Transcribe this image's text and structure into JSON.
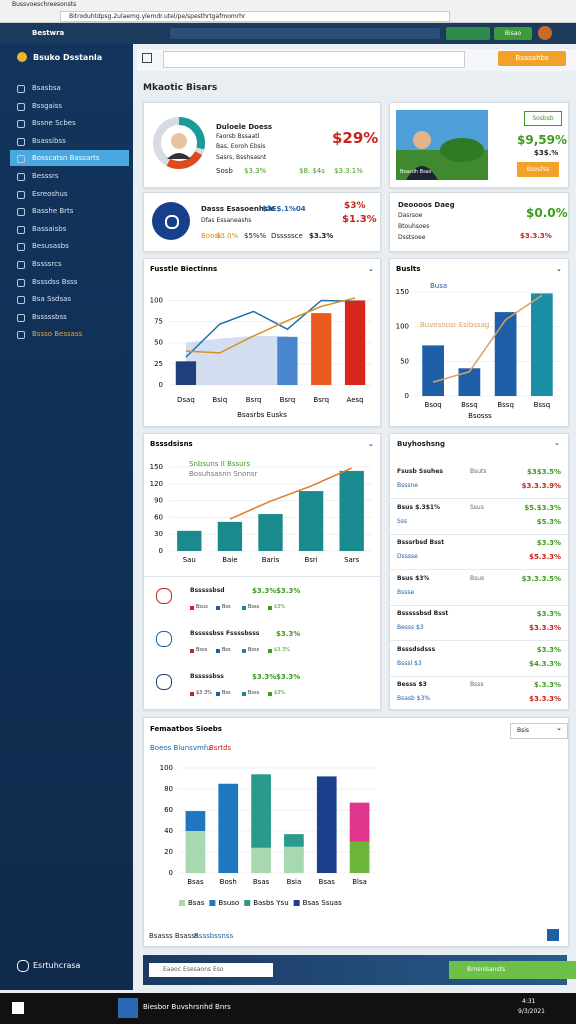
{
  "browser": {
    "tab": "Bussvoeschreesonsts",
    "url": "Bitroduhtdpsg.2ulaemg.ylemdr.utel/pe/spesthrtgafmomrhr"
  },
  "header": {
    "app": "Bestwra",
    "button": "Bisao"
  },
  "sidebar": {
    "brand": "Bsuko Dsstanla",
    "active_index": 4,
    "menu": [
      "Bsasbsa",
      "Bssgaiss",
      "Bssne Scbes",
      "Bsassibss",
      "Bosscatsn Bassarts",
      "Besssrs",
      "Esreoshus",
      "Basshe Brts",
      "Bassaisbs",
      "Besusasbs",
      "Bssssrcs",
      "Bsssdss Bsss",
      "Bsa Ssdsas",
      "Bsssssbss",
      "Bssso Bessass"
    ],
    "footer": "Esrtuhcrasa"
  },
  "search": {
    "button": "Bsasahbs"
  },
  "page_title": "Mkaotic Bisars",
  "cards": [
    {
      "name": "Duloele Doess",
      "lines": [
        "Faorsb Bssaatl",
        "Bas, Eoroh Ebsis",
        "Sasrs, Bsshsasnt"
      ],
      "big": "$29%",
      "row": [
        "Sosb",
        "$3.3%",
        "$8. $4s",
        "$3.3.1%"
      ]
    },
    {
      "tag": "Sosbsb",
      "big": "$9,59%",
      "sub": "$3$.%",
      "button": "Bsosfss",
      "caption": "Bsasdh Bsas"
    },
    {
      "name": "Dasss Esasoenhsle",
      "value": "$3E$.1%04",
      "line": "Dfas Essaneashs",
      "big": "$3%",
      "big2": "$1.3%",
      "row": [
        "Boosk",
        "$3.0%",
        "$5%%",
        "Dsssssce",
        "$3.3%"
      ]
    },
    {
      "name": "Deoooos Daeg",
      "lines": [
        "Dasrsoe",
        "Btouhsoes",
        "Dsstsoee"
      ],
      "big": "$0.0%",
      "value": "$3.3.3%"
    }
  ],
  "charts": [
    {
      "type": "bar",
      "title": "Fusstle Biectinns",
      "xlabel": "Bsasrbs Eusks",
      "categories": [
        "Dsaq",
        "Bsiq",
        "Bsrq",
        "Bsrq",
        "Bsrq",
        "Aesq"
      ],
      "ylim": [
        0,
        110
      ],
      "yticks": [
        0,
        25,
        50,
        75,
        100
      ],
      "series": [
        {
          "kind": "area",
          "color": "#c9d6ee",
          "values": [
            50,
            55,
            58,
            58,
            null,
            null
          ]
        },
        {
          "kind": "bar",
          "color": "#1f3f7a",
          "values": [
            28,
            null,
            null,
            null,
            null,
            null
          ]
        },
        {
          "kind": "bar",
          "color": "#4a86cf",
          "values": [
            null,
            null,
            null,
            57,
            null,
            null
          ]
        },
        {
          "kind": "bar",
          "color": "#ea5a1e",
          "values": [
            null,
            null,
            null,
            null,
            85,
            null
          ]
        },
        {
          "kind": "bar",
          "color": "#d9261c",
          "values": [
            null,
            null,
            null,
            null,
            null,
            100
          ]
        },
        {
          "kind": "line",
          "color": "#1f6fa8",
          "values": [
            33,
            72,
            87,
            66,
            100,
            99
          ]
        },
        {
          "kind": "line",
          "color": "#d99023",
          "values": [
            40,
            38,
            58,
            76,
            93,
            103
          ]
        }
      ]
    },
    {
      "type": "bar",
      "title": "Buslts",
      "xlabel": "Bsosss",
      "categories": [
        "Bsoq",
        "Bssq",
        "Bssq",
        "Bssq"
      ],
      "ylim": [
        0,
        150
      ],
      "yticks": [
        0,
        50,
        100,
        150
      ],
      "series": [
        {
          "kind": "bar",
          "name": "Busa",
          "color": "#1f5fa8",
          "values": [
            73,
            40,
            121,
            null
          ]
        },
        {
          "kind": "bar",
          "color": "#1a8fa6",
          "values": [
            null,
            null,
            null,
            148
          ]
        },
        {
          "kind": "line",
          "name": "Buvesnosr Esibssag",
          "color": "#e0a060",
          "values": [
            20,
            35,
            110,
            145
          ]
        }
      ]
    },
    {
      "type": "bar",
      "title": "Bsssdsisns",
      "categories": [
        "Sau",
        "Baie",
        "Baris",
        "Bsri",
        "Sars"
      ],
      "ylim": [
        0,
        150
      ],
      "yticks": [
        0,
        30,
        60,
        90,
        120,
        150
      ],
      "series": [
        {
          "kind": "bar",
          "name": "Snbsuns II Bssurs",
          "color": "#1a8a8e",
          "values": [
            36,
            52,
            66,
            107,
            143
          ]
        },
        {
          "kind": "line",
          "name": "Bosuhsasnn Snonsr",
          "color": "#e07b28",
          "values": [
            null,
            57,
            89,
            116,
            148
          ]
        }
      ]
    },
    {
      "type": "bar",
      "title": "Femaatbos Sioebs",
      "subtitle": "Boeos Biunsvmfu",
      "note": "Bsrtds",
      "button": "Bsis",
      "stacked": true,
      "categories": [
        "Bsas",
        "Bosh",
        "Bsas",
        "Bsia",
        "Bsas",
        "Blsa"
      ],
      "ylim": [
        0,
        100
      ],
      "yticks": [
        0,
        20,
        40,
        60,
        80,
        100
      ],
      "series": [
        {
          "kind": "bar",
          "name": "Bsas",
          "color": "#a8d8b0",
          "values": [
            40,
            null,
            24,
            25,
            null,
            null
          ]
        },
        {
          "kind": "bar",
          "name": "Bsuso",
          "color": "#1f77c0",
          "values": [
            19,
            85,
            null,
            null,
            null,
            null
          ]
        },
        {
          "kind": "bar",
          "name": "Basbs Ysu",
          "color": "#2a9a8a",
          "values": [
            null,
            null,
            70,
            12,
            null,
            null
          ]
        },
        {
          "kind": "bar",
          "name": "Bsas Ssuas",
          "color": "#1c3f8c",
          "values": [
            null,
            null,
            null,
            null,
            92,
            null
          ]
        },
        {
          "kind": "bar",
          "color": "#6ab53a",
          "values": [
            null,
            null,
            null,
            null,
            null,
            30
          ]
        },
        {
          "kind": "bar",
          "color": "#e0358a",
          "values": [
            null,
            null,
            null,
            null,
            null,
            37
          ]
        }
      ]
    }
  ],
  "right_list": {
    "title": "Buyhoshsng",
    "items": [
      {
        "name": "Fsusb Ssuhes",
        "mid": "Bsuts",
        "value": "$3$3.5%",
        "sub": "Bsssne",
        "subvalue": "$3.3.3.9%"
      },
      {
        "name": "Bsus $.3$1%",
        "mid": "Ssus",
        "value": "$5.$3.3%",
        "sub": "Sss",
        "subvalue": "$5.3%"
      },
      {
        "name": "Bsssrbsd Bsst",
        "mid": "",
        "value": "$3.3%",
        "sub": "Dsssse",
        "subvalue": "$5.3.3%"
      },
      {
        "name": "Bsus $3%",
        "mid": "Bsus",
        "value": "$3.3.3.5%",
        "sub": "Bssse",
        "subvalue": ""
      },
      {
        "name": "Bsssssbsd Bsst",
        "mid": "",
        "value": "$3.3%",
        "sub": "Besss $3",
        "subvalue": "$3.3.3%"
      },
      {
        "name": "Bsssdsdsss",
        "mid": "",
        "value": "$3.3%",
        "sub": "Bsssl $3",
        "subvalue": "$4.3.3%"
      },
      {
        "name": "Besss $3",
        "mid": "Bsss",
        "value": "$.3.3%",
        "sub": "Bsasb $3%",
        "subvalue": "$3.3.3%"
      }
    ]
  },
  "left_list": [
    {
      "title": "Bsssssbsd",
      "v1": "$3.3%",
      "v2": "$3.3%",
      "tags": [
        "Bsus",
        "Bss",
        "Bsss",
        "$3%"
      ]
    },
    {
      "title": "Bsssssbss Fssssbsss",
      "v1": "",
      "v2": "$3.3%",
      "tags": [
        "Bsss",
        "Bss",
        "Bsss",
        "$3.3%"
      ]
    },
    {
      "title": "Bsssssbss",
      "v1": "$3.3%",
      "v2": "$3.3%",
      "tags": [
        "$3.3%",
        "Bss",
        "Bsss",
        "$3%"
      ]
    }
  ],
  "chart_footer": {
    "left": "Bsasss Bsasss",
    "link": "Bsssbssnss"
  },
  "bottom_bar": {
    "search": "Eaaoc Esesaons Eso",
    "button": "Brnsnlsansts"
  },
  "taskbar": {
    "app": "Biesbor Buvshrsnhd Bnrs",
    "time": "4:31",
    "date": "9/3/2021"
  }
}
